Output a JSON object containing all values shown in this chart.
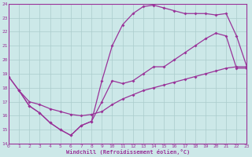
{
  "line1_x": [
    0,
    1,
    2,
    3,
    4,
    5,
    6,
    7,
    8,
    9,
    10,
    11,
    12,
    13,
    14,
    15,
    16,
    17,
    18,
    19,
    20,
    21,
    22,
    23
  ],
  "line1_y": [
    18.8,
    17.8,
    16.7,
    16.2,
    15.5,
    15.0,
    14.6,
    15.3,
    15.6,
    17.0,
    18.5,
    18.3,
    18.5,
    19.0,
    19.5,
    19.5,
    20.0,
    20.5,
    21.0,
    21.5,
    21.9,
    21.7,
    19.4,
    19.4
  ],
  "line2_x": [
    1,
    2,
    3,
    4,
    5,
    6,
    7,
    8,
    9,
    10,
    11,
    12,
    13,
    14,
    15,
    16,
    17,
    18,
    19,
    20,
    21,
    22,
    23
  ],
  "line2_y": [
    17.8,
    17.0,
    16.8,
    16.5,
    16.3,
    16.1,
    16.0,
    16.1,
    16.3,
    16.8,
    17.2,
    17.5,
    17.8,
    18.0,
    18.2,
    18.4,
    18.6,
    18.8,
    19.0,
    19.2,
    19.4,
    19.5,
    19.5
  ],
  "line3_x": [
    0,
    1,
    2,
    3,
    4,
    5,
    6,
    7,
    8,
    9,
    10,
    11,
    12,
    13,
    14,
    15,
    16,
    17,
    18,
    19,
    20,
    21,
    22,
    23
  ],
  "line3_y": [
    18.8,
    17.8,
    16.7,
    16.2,
    15.5,
    15.0,
    14.6,
    15.3,
    15.6,
    18.5,
    21.0,
    22.5,
    23.3,
    23.8,
    23.9,
    23.7,
    23.5,
    23.3,
    23.3,
    23.3,
    23.2,
    23.3,
    21.7,
    19.5
  ],
  "color": "#993399",
  "bg_color": "#cce8e8",
  "grid_color": "#aacccc",
  "xlabel": "Windchill (Refroidissement éolien,°C)",
  "ylim": [
    14,
    24
  ],
  "xlim": [
    0,
    23
  ],
  "yticks": [
    14,
    15,
    16,
    17,
    18,
    19,
    20,
    21,
    22,
    23,
    24
  ],
  "xticks": [
    0,
    1,
    2,
    3,
    4,
    5,
    6,
    7,
    8,
    9,
    10,
    11,
    12,
    13,
    14,
    15,
    16,
    17,
    18,
    19,
    20,
    21,
    22,
    23
  ],
  "marker": "D",
  "markersize": 2,
  "linewidth": 0.9
}
